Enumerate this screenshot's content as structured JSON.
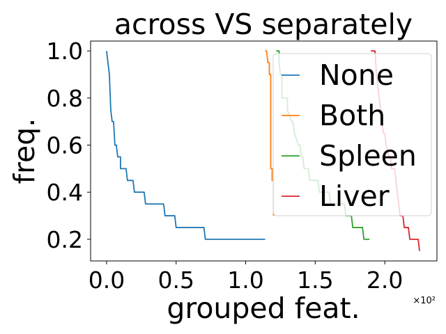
{
  "chart_data": {
    "type": "line",
    "title": "across VS separately",
    "xlabel": "grouped feat.",
    "ylabel": "freq.",
    "x_multiplier_label": "×10²",
    "xlim": [
      -11.5,
      237.5
    ],
    "ylim": [
      0.108,
      1.042
    ],
    "xticks": [
      {
        "value": 0,
        "label": "0.0"
      },
      {
        "value": 50,
        "label": "0.5"
      },
      {
        "value": 100,
        "label": "1.0"
      },
      {
        "value": 150,
        "label": "1.5"
      },
      {
        "value": 200,
        "label": "2.0"
      }
    ],
    "yticks": [
      {
        "value": 0.2,
        "label": "0.2"
      },
      {
        "value": 0.4,
        "label": "0.4"
      },
      {
        "value": 0.6,
        "label": "0.6"
      },
      {
        "value": 0.8,
        "label": "0.8"
      },
      {
        "value": 1.0,
        "label": "1.0"
      }
    ],
    "legend_position": "upper-right",
    "series": [
      {
        "name": "None",
        "color": "#1f77b4",
        "points": [
          [
            0,
            1.0
          ],
          [
            1,
            0.95
          ],
          [
            2,
            0.9
          ],
          [
            3,
            0.75
          ],
          [
            4,
            0.7
          ],
          [
            5,
            0.7
          ],
          [
            6,
            0.6
          ],
          [
            7,
            0.6
          ],
          [
            8,
            0.55
          ],
          [
            10,
            0.55
          ],
          [
            10,
            0.5
          ],
          [
            14,
            0.5
          ],
          [
            15,
            0.45
          ],
          [
            19,
            0.45
          ],
          [
            20,
            0.4
          ],
          [
            27,
            0.4
          ],
          [
            28,
            0.35
          ],
          [
            41,
            0.35
          ],
          [
            42,
            0.3
          ],
          [
            49,
            0.3
          ],
          [
            50,
            0.25
          ],
          [
            70,
            0.25
          ],
          [
            71,
            0.2
          ],
          [
            114,
            0.2
          ]
        ]
      },
      {
        "name": "Both",
        "color": "#ff7f0e",
        "points": [
          [
            114,
            1.0
          ],
          [
            115,
            1.0
          ],
          [
            116,
            0.95
          ],
          [
            117,
            0.95
          ],
          [
            117,
            0.9
          ],
          [
            118,
            0.9
          ],
          [
            118,
            0.85
          ],
          [
            118,
            0.5
          ],
          [
            119,
            0.5
          ],
          [
            119,
            0.45
          ],
          [
            120,
            0.45
          ],
          [
            120,
            0.3
          ]
        ]
      },
      {
        "name": "Spleen",
        "color": "#2ca02c",
        "points": [
          [
            122,
            1.0
          ],
          [
            124,
            1.0
          ],
          [
            124,
            0.95
          ],
          [
            125,
            0.9
          ],
          [
            126,
            0.9
          ],
          [
            126,
            0.8
          ],
          [
            130,
            0.8
          ],
          [
            130,
            0.75
          ],
          [
            133,
            0.7
          ],
          [
            134,
            0.7
          ],
          [
            135,
            0.65
          ],
          [
            138,
            0.6
          ],
          [
            139,
            0.6
          ],
          [
            140,
            0.55
          ],
          [
            141,
            0.55
          ],
          [
            142,
            0.5
          ],
          [
            145,
            0.5
          ],
          [
            146,
            0.45
          ],
          [
            152,
            0.45
          ],
          [
            153,
            0.4
          ],
          [
            160,
            0.4
          ],
          [
            161,
            0.35
          ],
          [
            171,
            0.35
          ],
          [
            172,
            0.3
          ],
          [
            176,
            0.3
          ],
          [
            177,
            0.25
          ],
          [
            184,
            0.25
          ],
          [
            185,
            0.2
          ],
          [
            189,
            0.2
          ]
        ]
      },
      {
        "name": "Liver",
        "color": "#d62728",
        "points": [
          [
            190,
            1.0
          ],
          [
            193,
            1.0
          ],
          [
            194,
            0.9
          ],
          [
            195,
            0.85
          ],
          [
            196,
            0.8
          ],
          [
            197,
            0.75
          ],
          [
            198,
            0.7
          ],
          [
            199,
            0.65
          ],
          [
            200,
            0.65
          ],
          [
            201,
            0.6
          ],
          [
            203,
            0.55
          ],
          [
            204,
            0.55
          ],
          [
            205,
            0.5
          ],
          [
            207,
            0.5
          ],
          [
            208,
            0.45
          ],
          [
            209,
            0.4
          ],
          [
            210,
            0.35
          ],
          [
            211,
            0.3
          ],
          [
            213,
            0.3
          ],
          [
            214,
            0.25
          ],
          [
            217,
            0.25
          ],
          [
            218,
            0.2
          ],
          [
            222,
            0.2
          ],
          [
            224,
            0.2
          ],
          [
            225,
            0.15
          ]
        ]
      }
    ]
  }
}
